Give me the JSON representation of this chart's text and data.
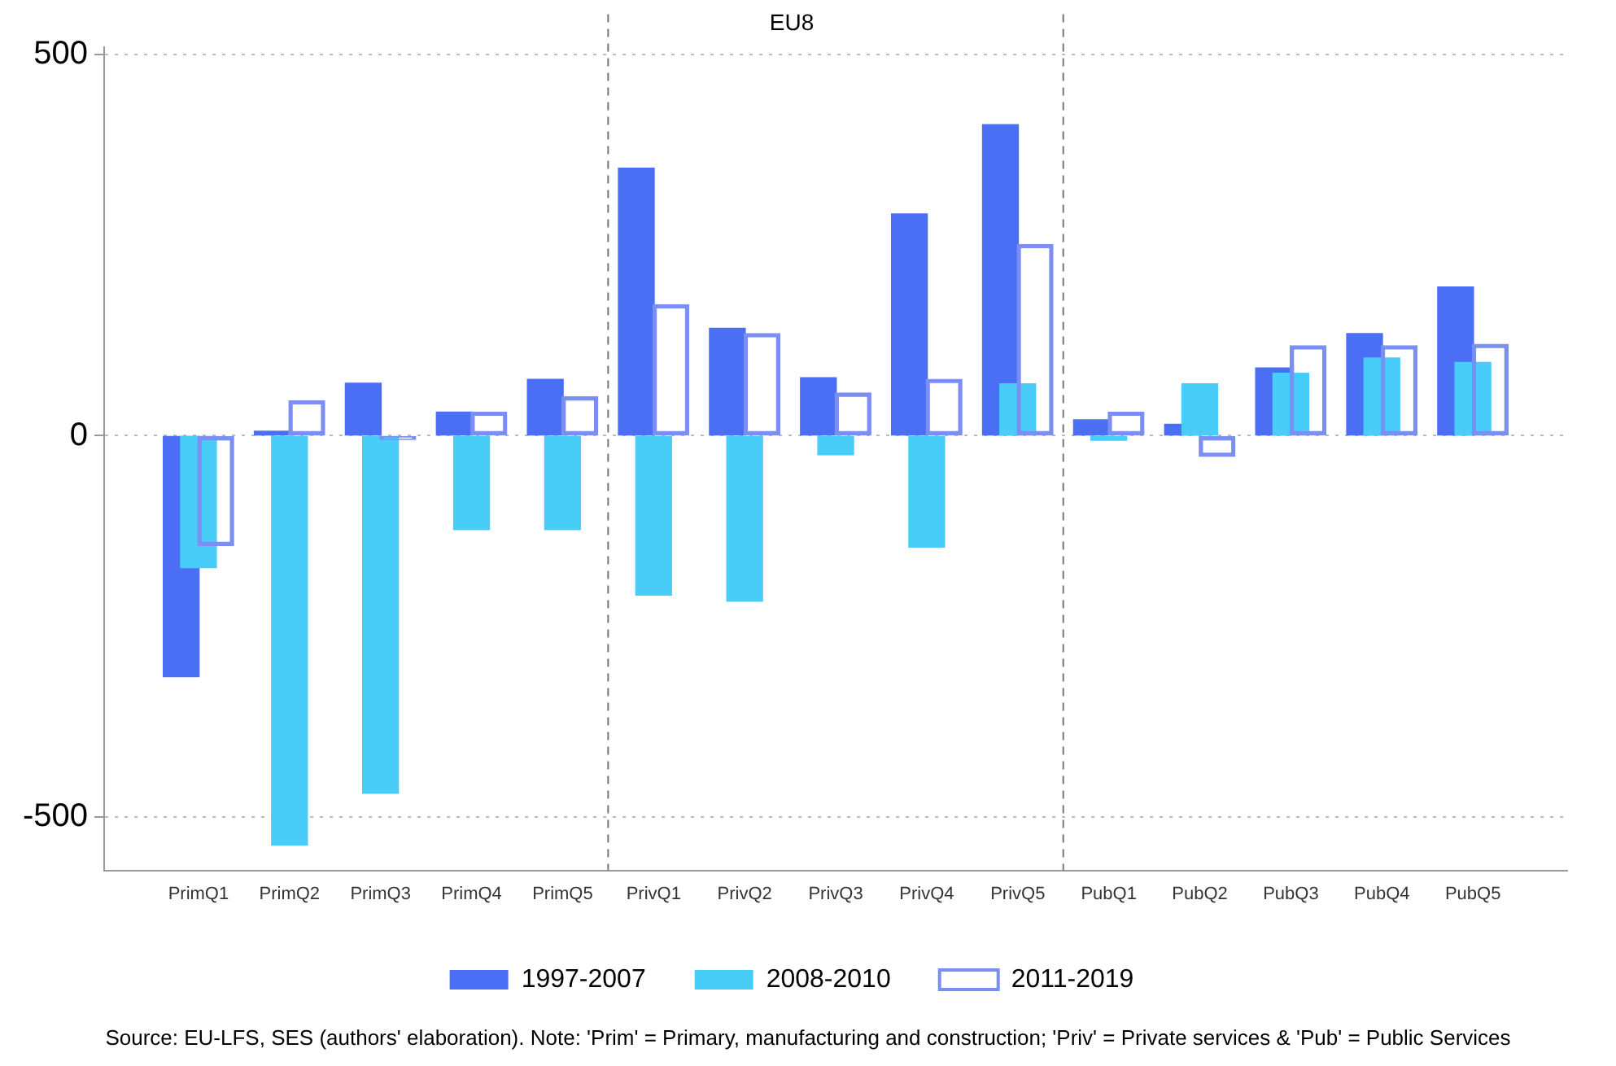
{
  "chart_data": {
    "type": "bar",
    "title": "EU8",
    "categories": [
      "PrimQ1",
      "PrimQ2",
      "PrimQ3",
      "PrimQ4",
      "PrimQ5",
      "PrivQ1",
      "PrivQ2",
      "PrivQ3",
      "PrivQ4",
      "PrivQ5",
      "PubQ1",
      "PubQ2",
      "PubQ3",
      "PubQ4",
      "PubQ5"
    ],
    "series": [
      {
        "name": "1997-2007",
        "color": "#4a6ff5",
        "values": [
          -316,
          6,
          69,
          31,
          74,
          351,
          141,
          76,
          291,
          408,
          21,
          15,
          89,
          134,
          195
        ]
      },
      {
        "name": "2008-2010",
        "color": "#48cdf9",
        "values": [
          -173,
          -537,
          -469,
          -123,
          -123,
          -209,
          -217,
          -25,
          -146,
          68,
          -6,
          68,
          82,
          102,
          96
        ]
      },
      {
        "name": "2011-2019",
        "color": "#7b8ef2",
        "values": [
          -144,
          46,
          -5,
          31,
          51,
          172,
          134,
          56,
          74,
          251,
          31,
          -27,
          118,
          118,
          120
        ]
      }
    ],
    "ylim": [
      -570,
      510
    ],
    "yticks": [
      -500,
      0,
      500
    ],
    "grid": "y",
    "legend": "bottom",
    "annotations": [
      "Source: EU-LFS, SES (authors' elaboration). Note: 'Prim' = Primary, manufacturing and construction; 'Priv' = Private services & 'Pub' = Public Services"
    ]
  }
}
